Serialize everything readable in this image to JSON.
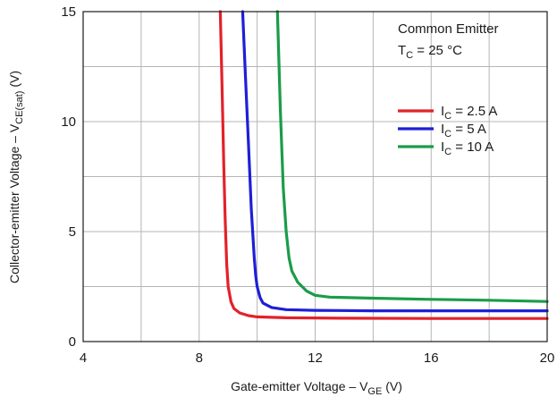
{
  "chart_data": {
    "type": "line",
    "title": "",
    "xlabel": {
      "main": "Gate-emitter Voltage – V",
      "sub": "GE",
      "unit": " (V)"
    },
    "ylabel": {
      "main": "Collector-emitter Voltage – V",
      "sub": "CE(sat)",
      "unit": " (V)"
    },
    "xlim": [
      4,
      20
    ],
    "ylim": [
      0,
      15
    ],
    "xticks": [
      "4",
      "8",
      "12",
      "16",
      "20"
    ],
    "yticks": [
      "0",
      "5",
      "10",
      "15"
    ],
    "grid": true,
    "annotations": {
      "line1": "Common Emitter",
      "line2_main": "T",
      "line2_sub": "C",
      "line2_rest": " = 25 °C"
    },
    "legend_position": "right",
    "series": [
      {
        "name": "I",
        "name_sub": "C",
        "name_rest": " = 2.5 A",
        "color": "#e3212a",
        "x": [
          8.73,
          8.8,
          8.85,
          8.9,
          8.95,
          9.0,
          9.1,
          9.2,
          9.4,
          9.7,
          10.0,
          11.0,
          13.0,
          16.0,
          20.0
        ],
        "y": [
          15,
          11,
          8,
          5.5,
          3.5,
          2.5,
          1.8,
          1.5,
          1.3,
          1.18,
          1.12,
          1.08,
          1.06,
          1.05,
          1.05
        ]
      },
      {
        "name": "I",
        "name_sub": "C",
        "name_rest": " = 5 A",
        "color": "#1f1fd6",
        "x": [
          9.5,
          9.6,
          9.7,
          9.8,
          9.9,
          9.95,
          10.0,
          10.1,
          10.2,
          10.5,
          11.0,
          12.0,
          14.0,
          17.0,
          20.0
        ],
        "y": [
          15,
          12,
          9,
          6,
          3.8,
          3.0,
          2.5,
          2.0,
          1.75,
          1.55,
          1.45,
          1.42,
          1.4,
          1.4,
          1.4
        ]
      },
      {
        "name": "I",
        "name_sub": "C",
        "name_rest": " = 10 A",
        "color": "#1a9c4a",
        "x": [
          10.7,
          10.8,
          10.9,
          11.0,
          11.1,
          11.2,
          11.4,
          11.7,
          12.0,
          12.5,
          14.0,
          16.0,
          18.0,
          20.0
        ],
        "y": [
          15,
          10.5,
          7,
          5,
          3.8,
          3.2,
          2.7,
          2.3,
          2.1,
          2.02,
          1.97,
          1.92,
          1.88,
          1.82
        ]
      }
    ]
  }
}
